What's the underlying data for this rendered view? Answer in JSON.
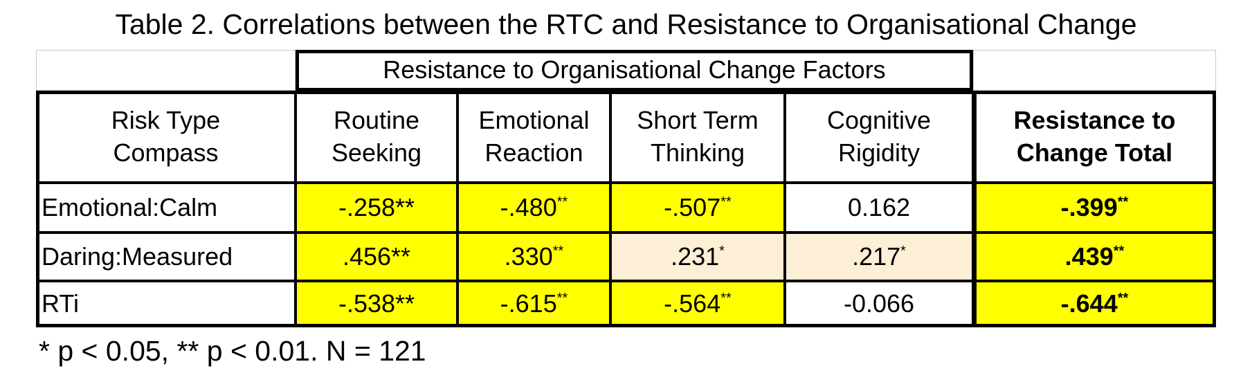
{
  "title": "Table 2. Correlations between the RTC and Resistance to Organisational Change",
  "table": {
    "group_header": "Resistance to Organisational Change Factors",
    "columns": [
      [
        "Risk Type",
        "Compass"
      ],
      [
        "Routine",
        "Seeking"
      ],
      [
        "Emotional",
        "Reaction"
      ],
      [
        "Short Term",
        "Thinking"
      ],
      [
        "Cognitive",
        "Rigidity"
      ],
      [
        "Resistance to",
        "Change Total"
      ]
    ],
    "rows": [
      {
        "label": "Emotional:Calm",
        "cells": [
          {
            "text": "-.258**",
            "color": "#ffff00"
          },
          {
            "text": "-.480",
            "sup": "**",
            "color": "#ffff00"
          },
          {
            "text": "-.507",
            "sup": "**",
            "color": "#ffff00"
          },
          {
            "text": "0.162",
            "color": "#ffffff"
          },
          {
            "text": "-.399",
            "sup": "**",
            "color": "#ffff00"
          }
        ]
      },
      {
        "label": "Daring:Measured",
        "cells": [
          {
            "text": ".456**",
            "color": "#ffff00"
          },
          {
            "text": ".330",
            "sup": "**",
            "color": "#ffff00"
          },
          {
            "text": ".231",
            "sup": "*",
            "color": "#fdefd6"
          },
          {
            "text": ".217",
            "sup": "*",
            "color": "#fdefd6"
          },
          {
            "text": ".439",
            "sup": "**",
            "color": "#ffff00"
          }
        ]
      },
      {
        "label": "RTi",
        "cells": [
          {
            "text": "-.538**",
            "color": "#ffff00"
          },
          {
            "text": "-.615",
            "sup": "**",
            "color": "#ffff00"
          },
          {
            "text": "-.564",
            "sup": "**",
            "color": "#ffff00"
          },
          {
            "text": "-0.066",
            "color": "#ffffff"
          },
          {
            "text": "-.644",
            "sup": "**",
            "color": "#ffff00"
          }
        ]
      }
    ]
  },
  "footnote": "* p < 0.05, ** p < 0.01. N = 121"
}
